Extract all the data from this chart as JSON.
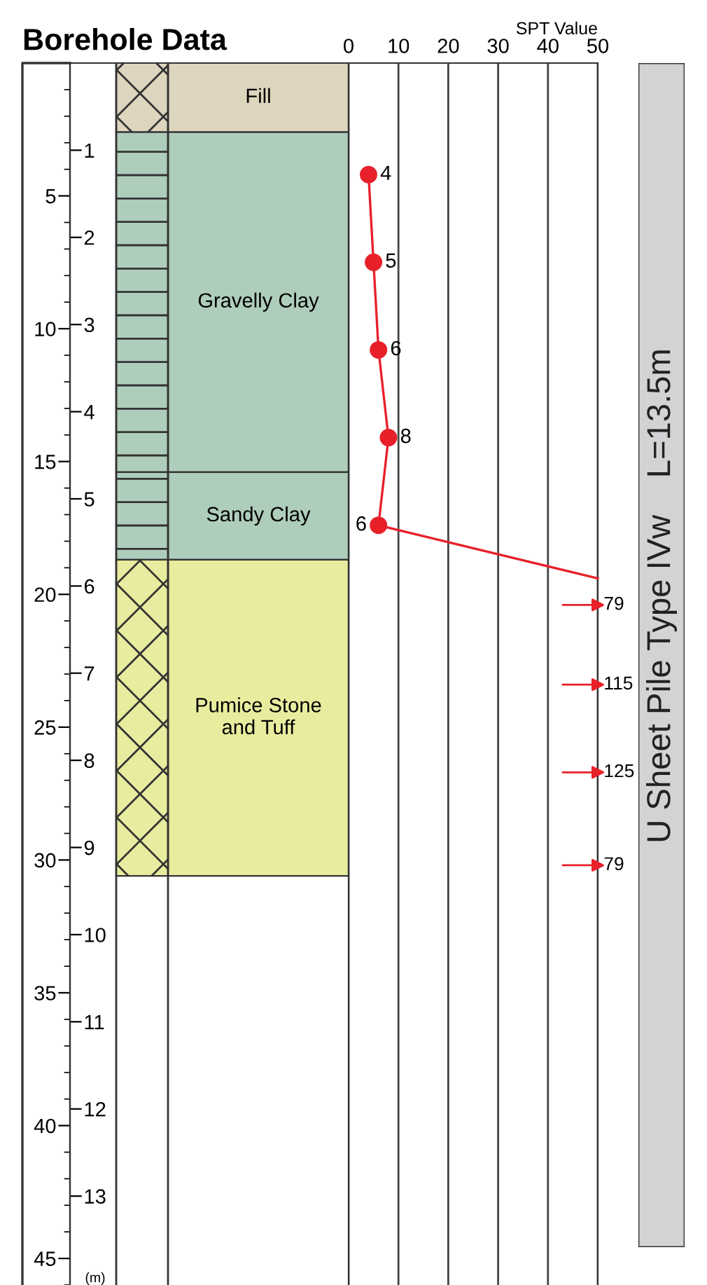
{
  "chart_data": [
    {
      "type": "bar",
      "stacked": true,
      "title": "Borehole Data",
      "categories": [
        null
      ],
      "tick_labels": "y",
      "ylim": [
        46,
        0
      ],
      "yticks": [
        5,
        10,
        15,
        20,
        25,
        30,
        35,
        40,
        45
      ],
      "y2lim": [
        14.02,
        0
      ],
      "y2ticks": [
        1,
        2,
        3,
        4,
        5,
        6,
        7,
        8,
        9,
        10,
        11,
        12,
        13
      ],
      "y2label": "(m)",
      "series": [
        {
          "name": "Fill",
          "color": "#ddd5bd",
          "values": [
            2.6
          ]
        },
        {
          "name": "Gravelly Clay",
          "color": "#afcdbb",
          "values": [
            12.8
          ]
        },
        {
          "name": "Sandy Clay",
          "color": "#afcdbb",
          "values": [
            3.3
          ]
        },
        {
          "name": "Pumice Stone\nand Tuff",
          "color": "#e8ec9e",
          "values": [
            11.9
          ]
        }
      ]
    },
    {
      "type": "line",
      "xlabel": "SPT Value",
      "tick_labels": "x",
      "xlim": [
        0,
        50
      ],
      "xticks": [
        0,
        10,
        20,
        30,
        40,
        50
      ],
      "ylim": [
        46,
        0
      ],
      "grid": "x",
      "series": [
        {
          "color": "#e8202a",
          "marker": "circle",
          "x": [
            4,
            5,
            6,
            8,
            6
          ],
          "values": [
            4.2,
            7.5,
            10.8,
            14.1,
            17.4
          ]
        },
        {
          "color": "#e8202a",
          "marker": "none",
          "x": [
            6,
            50
          ],
          "values": [
            17.4,
            19.4
          ]
        },
        {
          "type": "scatter",
          "color": "#e8202a",
          "marker": "triangle",
          "x": [
            50,
            50,
            50,
            50
          ],
          "values": [
            20.4,
            23.4,
            26.7,
            30.2
          ]
        }
      ],
      "annotations": [
        {
          "text": "4",
          "x": 4,
          "y": 4.2
        },
        {
          "text": "5",
          "x": 5,
          "y": 7.5
        },
        {
          "text": "6",
          "x": 6,
          "y": 10.8
        },
        {
          "text": "8",
          "x": 8,
          "y": 14.1
        },
        {
          "text": "6",
          "x": 6,
          "y": 17.4
        },
        {
          "text": "79",
          "x": 50,
          "y": 20.4
        },
        {
          "text": "115",
          "x": 50,
          "y": 23.4
        },
        {
          "text": "125",
          "x": 50,
          "y": 26.7
        },
        {
          "text": "79",
          "x": 50,
          "y": 30.2
        },
        "U Sheet Pile Type IVw    L=13.5m"
      ]
    }
  ]
}
